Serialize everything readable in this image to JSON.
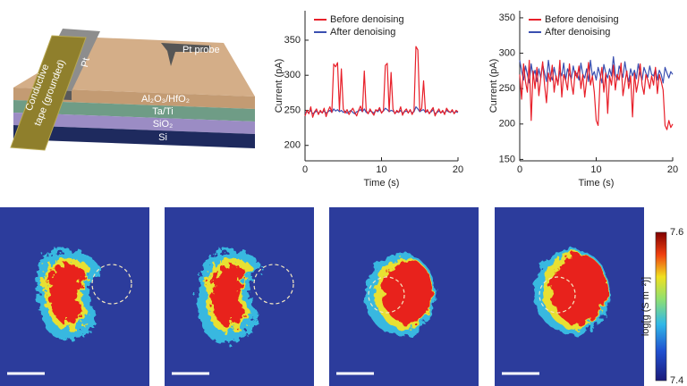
{
  "diagram": {
    "probe_label": "Pt probe",
    "electrode_label": "Pt",
    "tape_label": [
      "Conductive",
      "tape (grounded)"
    ],
    "layers": [
      "Al₂O₃/HfO₂",
      "Ta/Ti",
      "SiO₂",
      "Si"
    ]
  },
  "chart_data": [
    {
      "type": "line",
      "x_label": "Time (s)",
      "y_label": "Current (pA)",
      "xlim": [
        0,
        20
      ],
      "ylim": [
        178,
        392
      ],
      "xticks": [
        0,
        10,
        20
      ],
      "yticks": [
        200,
        250,
        300,
        350
      ],
      "legend": "top-left",
      "x": [
        0,
        0.25,
        0.5,
        0.75,
        1,
        1.25,
        1.5,
        1.75,
        2,
        2.25,
        2.5,
        2.75,
        3,
        3.25,
        3.5,
        3.75,
        4,
        4.25,
        4.5,
        4.75,
        5,
        5.25,
        5.5,
        5.75,
        6,
        6.25,
        6.5,
        6.75,
        7,
        7.25,
        7.5,
        7.75,
        8,
        8.25,
        8.5,
        8.75,
        9,
        9.25,
        9.5,
        9.75,
        10,
        10.25,
        10.5,
        10.75,
        11,
        11.25,
        11.5,
        11.75,
        12,
        12.25,
        12.5,
        12.75,
        13,
        13.25,
        13.5,
        13.75,
        14,
        14.25,
        14.5,
        14.75,
        15,
        15.25,
        15.5,
        15.75,
        16,
        16.25,
        16.5,
        16.75,
        17,
        17.25,
        17.5,
        17.75,
        18,
        18.25,
        18.5,
        18.75,
        19,
        19.25,
        19.5,
        19.75,
        20
      ],
      "series": [
        {
          "name": "Before denoising",
          "color": "#e8202a",
          "values": [
            242,
            250,
            245,
            255,
            240,
            248,
            252,
            244,
            250,
            246,
            253,
            241,
            249,
            255,
            247,
            316,
            312,
            318,
            250,
            309,
            252,
            246,
            251,
            244,
            249,
            253,
            247,
            242,
            250,
            256,
            248,
            306,
            250,
            245,
            252,
            247,
            243,
            251,
            249,
            254,
            246,
            250,
            314,
            317,
            248,
            304,
            252,
            245,
            250,
            247,
            255,
            243,
            249,
            252,
            246,
            251,
            244,
            250,
            341,
            336,
            249,
            253,
            292,
            247,
            251,
            245,
            250,
            254,
            242,
            248,
            252,
            246,
            250,
            244,
            253,
            249,
            247,
            251,
            245,
            250,
            248
          ]
        },
        {
          "name": "After denoising",
          "color": "#3a4fb0",
          "values": [
            246,
            248,
            247,
            250,
            245,
            247,
            249,
            246,
            248,
            247,
            249,
            246,
            248,
            250,
            247,
            252,
            249,
            251,
            248,
            250,
            247,
            249,
            246,
            248,
            250,
            247,
            245,
            248,
            249,
            251,
            248,
            252,
            247,
            246,
            249,
            248,
            246,
            250,
            248,
            251,
            247,
            249,
            253,
            251,
            248,
            250,
            249,
            246,
            248,
            247,
            250,
            246,
            248,
            249,
            247,
            250,
            246,
            248,
            255,
            252,
            248,
            250,
            251,
            247,
            249,
            246,
            248,
            251,
            245,
            247,
            249,
            247,
            248,
            246,
            250,
            248,
            247,
            249,
            246,
            248,
            247
          ]
        }
      ]
    },
    {
      "type": "line",
      "x_label": "Time (s)",
      "y_label": "Current (pA)",
      "xlim": [
        0,
        20
      ],
      "ylim": [
        148,
        360
      ],
      "xticks": [
        0,
        10,
        20
      ],
      "yticks": [
        150,
        200,
        250,
        300,
        350
      ],
      "legend": "top-left",
      "x": [
        0,
        0.25,
        0.5,
        0.75,
        1,
        1.25,
        1.5,
        1.75,
        2,
        2.25,
        2.5,
        2.75,
        3,
        3.25,
        3.5,
        3.75,
        4,
        4.25,
        4.5,
        4.75,
        5,
        5.25,
        5.5,
        5.75,
        6,
        6.25,
        6.5,
        6.75,
        7,
        7.25,
        7.5,
        7.75,
        8,
        8.25,
        8.5,
        8.75,
        9,
        9.25,
        9.5,
        9.75,
        10,
        10.25,
        10.5,
        10.75,
        11,
        11.25,
        11.5,
        11.75,
        12,
        12.25,
        12.5,
        12.75,
        13,
        13.25,
        13.5,
        13.75,
        14,
        14.25,
        14.5,
        14.75,
        15,
        15.25,
        15.5,
        15.75,
        16,
        16.25,
        16.5,
        16.75,
        17,
        17.25,
        17.5,
        17.75,
        18,
        18.25,
        18.5,
        18.75,
        19,
        19.25,
        19.5,
        19.75,
        20
      ],
      "series": [
        {
          "name": "Before denoising",
          "color": "#e8202a",
          "values": [
            270,
            235,
            285,
            260,
            245,
            290,
            205,
            275,
            250,
            280,
            240,
            265,
            288,
            255,
            230,
            272,
            260,
            283,
            245,
            268,
            255,
            290,
            238,
            270,
            262,
            248,
            285,
            258,
            242,
            275,
            265,
            282,
            250,
            270,
            238,
            262,
            287,
            255,
            268,
            245,
            205,
            198,
            260,
            280,
            245,
            272,
            215,
            268,
            255,
            283,
            248,
            270,
            262,
            286,
            240,
            258,
            275,
            250,
            268,
            210,
            272,
            245,
            260,
            285,
            255,
            242,
            270,
            262,
            250,
            268,
            255,
            280,
            243,
            270,
            260,
            248,
            198,
            192,
            205,
            195,
            200
          ]
        },
        {
          "name": "After denoising",
          "color": "#3a4fb0",
          "values": [
            290,
            275,
            262,
            282,
            270,
            258,
            285,
            268,
            276,
            260,
            278,
            265,
            284,
            272,
            260,
            290,
            270,
            262,
            280,
            266,
            258,
            275,
            268,
            286,
            262,
            278,
            270,
            264,
            282,
            268,
            272,
            262,
            286,
            270,
            265,
            278,
            260,
            290,
            268,
            274,
            262,
            280,
            270,
            258,
            284,
            272,
            265,
            278,
            268,
            295,
            270,
            262,
            282,
            275,
            266,
            288,
            270,
            260,
            278,
            268,
            276,
            264,
            285,
            270,
            262,
            280,
            272,
            266,
            282,
            270,
            268,
            278,
            262,
            276,
            270,
            258,
            280,
            272,
            265,
            274,
            270
          ]
        }
      ]
    }
  ],
  "colorbar": {
    "label": "log[g (S m⁻²)]",
    "max": 7.6,
    "min": 7.4
  }
}
